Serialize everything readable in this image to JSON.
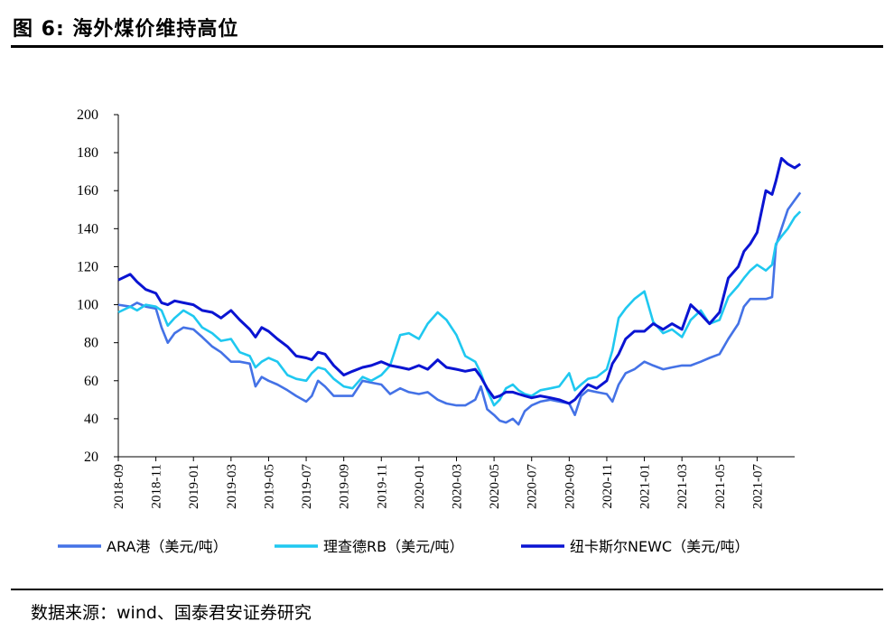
{
  "figure": {
    "title": "图 6: 海外煤价维持高位",
    "source": "数据来源：wind、国泰君安证券研究"
  },
  "chart_data": {
    "type": "line",
    "x_tick_labels": [
      "2018-09",
      "2018-11",
      "2019-01",
      "2019-03",
      "2019-05",
      "2019-07",
      "2019-09",
      "2019-11",
      "2020-01",
      "2020-03",
      "2020-05",
      "2020-07",
      "2020-09",
      "2020-11",
      "2021-01",
      "2021-03",
      "2021-05",
      "2021-07"
    ],
    "x_range": [
      "2018-09",
      "2021-09"
    ],
    "ylim": [
      20,
      200
    ],
    "y_ticks": [
      20,
      40,
      60,
      80,
      100,
      120,
      140,
      160,
      180,
      200
    ],
    "grid": false,
    "legend_position": "bottom",
    "series": [
      {
        "name": "ARA港（美元/吨）",
        "color": "#4472e6",
        "values": [
          [
            "2018-09",
            100
          ],
          [
            "2018-09-20",
            99
          ],
          [
            "2018-10",
            101
          ],
          [
            "2018-10-15",
            99
          ],
          [
            "2018-11",
            98
          ],
          [
            "2018-11-10",
            88
          ],
          [
            "2018-11-20",
            80
          ],
          [
            "2018-12",
            85
          ],
          [
            "2018-12-15",
            88
          ],
          [
            "2019-01",
            87
          ],
          [
            "2019-01-15",
            83
          ],
          [
            "2019-02",
            78
          ],
          [
            "2019-02-15",
            75
          ],
          [
            "2019-03",
            70
          ],
          [
            "2019-03-15",
            70
          ],
          [
            "2019-04",
            69
          ],
          [
            "2019-04-10",
            57
          ],
          [
            "2019-04-20",
            62
          ],
          [
            "2019-05",
            60
          ],
          [
            "2019-05-15",
            58
          ],
          [
            "2019-06",
            55
          ],
          [
            "2019-06-15",
            52
          ],
          [
            "2019-07",
            49
          ],
          [
            "2019-07-10",
            52
          ],
          [
            "2019-07-20",
            60
          ],
          [
            "2019-08",
            57
          ],
          [
            "2019-08-15",
            52
          ],
          [
            "2019-09",
            52
          ],
          [
            "2019-09-15",
            52
          ],
          [
            "2019-10",
            60
          ],
          [
            "2019-10-15",
            59
          ],
          [
            "2019-11",
            58
          ],
          [
            "2019-11-15",
            53
          ],
          [
            "2019-12",
            56
          ],
          [
            "2019-12-15",
            54
          ],
          [
            "2020-01",
            53
          ],
          [
            "2020-01-15",
            54
          ],
          [
            "2020-02",
            50
          ],
          [
            "2020-02-15",
            48
          ],
          [
            "2020-03",
            47
          ],
          [
            "2020-03-15",
            47
          ],
          [
            "2020-04",
            50
          ],
          [
            "2020-04-10",
            57
          ],
          [
            "2020-04-20",
            45
          ],
          [
            "2020-05",
            42
          ],
          [
            "2020-05-10",
            39
          ],
          [
            "2020-05-20",
            38
          ],
          [
            "2020-06",
            40
          ],
          [
            "2020-06-10",
            37
          ],
          [
            "2020-06-20",
            44
          ],
          [
            "2020-07",
            47
          ],
          [
            "2020-07-15",
            49
          ],
          [
            "2020-08",
            50
          ],
          [
            "2020-08-15",
            49
          ],
          [
            "2020-09",
            48
          ],
          [
            "2020-09-10",
            42
          ],
          [
            "2020-09-20",
            52
          ],
          [
            "2020-10",
            55
          ],
          [
            "2020-10-15",
            54
          ],
          [
            "2020-11",
            53
          ],
          [
            "2020-11-10",
            49
          ],
          [
            "2020-11-20",
            58
          ],
          [
            "2020-12",
            64
          ],
          [
            "2020-12-15",
            66
          ],
          [
            "2021-01",
            70
          ],
          [
            "2021-01-15",
            68
          ],
          [
            "2021-02",
            66
          ],
          [
            "2021-02-15",
            67
          ],
          [
            "2021-03",
            68
          ],
          [
            "2021-03-15",
            68
          ],
          [
            "2021-04",
            70
          ],
          [
            "2021-04-15",
            72
          ],
          [
            "2021-05",
            74
          ],
          [
            "2021-05-15",
            82
          ],
          [
            "2021-06",
            90
          ],
          [
            "2021-06-10",
            99
          ],
          [
            "2021-06-20",
            103
          ],
          [
            "2021-07",
            103
          ],
          [
            "2021-07-15",
            103
          ],
          [
            "2021-07-25",
            104
          ],
          [
            "2021-08",
            131
          ],
          [
            "2021-08-10",
            140
          ],
          [
            "2021-08-20",
            150
          ],
          [
            "2021-09",
            155
          ],
          [
            "2021-09-10",
            159
          ]
        ]
      },
      {
        "name": "理查德RB（美元/吨）",
        "color": "#1fc8f0",
        "values": [
          [
            "2018-09",
            96
          ],
          [
            "2018-09-20",
            99
          ],
          [
            "2018-10",
            97
          ],
          [
            "2018-10-15",
            100
          ],
          [
            "2018-11",
            99
          ],
          [
            "2018-11-10",
            97
          ],
          [
            "2018-11-20",
            89
          ],
          [
            "2018-12",
            93
          ],
          [
            "2018-12-15",
            97
          ],
          [
            "2019-01",
            94
          ],
          [
            "2019-01-15",
            88
          ],
          [
            "2019-02",
            85
          ],
          [
            "2019-02-15",
            81
          ],
          [
            "2019-03",
            82
          ],
          [
            "2019-03-15",
            75
          ],
          [
            "2019-04",
            73
          ],
          [
            "2019-04-10",
            67
          ],
          [
            "2019-04-20",
            70
          ],
          [
            "2019-05",
            72
          ],
          [
            "2019-05-15",
            70
          ],
          [
            "2019-06",
            63
          ],
          [
            "2019-06-15",
            61
          ],
          [
            "2019-07",
            60
          ],
          [
            "2019-07-10",
            64
          ],
          [
            "2019-07-20",
            67
          ],
          [
            "2019-08",
            66
          ],
          [
            "2019-08-15",
            61
          ],
          [
            "2019-09",
            57
          ],
          [
            "2019-09-15",
            56
          ],
          [
            "2019-10",
            62
          ],
          [
            "2019-10-15",
            60
          ],
          [
            "2019-11",
            63
          ],
          [
            "2019-11-15",
            68
          ],
          [
            "2019-12",
            84
          ],
          [
            "2019-12-15",
            85
          ],
          [
            "2020-01",
            82
          ],
          [
            "2020-01-15",
            90
          ],
          [
            "2020-02",
            96
          ],
          [
            "2020-02-15",
            92
          ],
          [
            "2020-03",
            84
          ],
          [
            "2020-03-15",
            73
          ],
          [
            "2020-04",
            70
          ],
          [
            "2020-04-10",
            64
          ],
          [
            "2020-04-20",
            55
          ],
          [
            "2020-05",
            47
          ],
          [
            "2020-05-10",
            50
          ],
          [
            "2020-05-20",
            56
          ],
          [
            "2020-06",
            58
          ],
          [
            "2020-06-10",
            55
          ],
          [
            "2020-06-20",
            53
          ],
          [
            "2020-07",
            52
          ],
          [
            "2020-07-15",
            55
          ],
          [
            "2020-08",
            56
          ],
          [
            "2020-08-15",
            57
          ],
          [
            "2020-09",
            64
          ],
          [
            "2020-09-10",
            55
          ],
          [
            "2020-09-20",
            58
          ],
          [
            "2020-10",
            61
          ],
          [
            "2020-10-15",
            62
          ],
          [
            "2020-11",
            66
          ],
          [
            "2020-11-10",
            76
          ],
          [
            "2020-11-20",
            93
          ],
          [
            "2020-12",
            98
          ],
          [
            "2020-12-15",
            103
          ],
          [
            "2021-01",
            107
          ],
          [
            "2021-01-15",
            91
          ],
          [
            "2021-02",
            85
          ],
          [
            "2021-02-15",
            87
          ],
          [
            "2021-03",
            83
          ],
          [
            "2021-03-15",
            92
          ],
          [
            "2021-04",
            97
          ],
          [
            "2021-04-15",
            90
          ],
          [
            "2021-05",
            92
          ],
          [
            "2021-05-15",
            104
          ],
          [
            "2021-06",
            110
          ],
          [
            "2021-06-10",
            114
          ],
          [
            "2021-06-20",
            118
          ],
          [
            "2021-07",
            121
          ],
          [
            "2021-07-15",
            118
          ],
          [
            "2021-07-25",
            121
          ],
          [
            "2021-08",
            132
          ],
          [
            "2021-08-10",
            136
          ],
          [
            "2021-08-20",
            140
          ],
          [
            "2021-09",
            146
          ],
          [
            "2021-09-10",
            149
          ]
        ]
      },
      {
        "name": "纽卡斯尔NEWC（美元/吨）",
        "color": "#0a14d2",
        "values": [
          [
            "2018-09",
            113
          ],
          [
            "2018-09-20",
            116
          ],
          [
            "2018-10",
            112
          ],
          [
            "2018-10-15",
            108
          ],
          [
            "2018-11",
            106
          ],
          [
            "2018-11-10",
            101
          ],
          [
            "2018-11-20",
            100
          ],
          [
            "2018-12",
            102
          ],
          [
            "2018-12-15",
            101
          ],
          [
            "2019-01",
            100
          ],
          [
            "2019-01-15",
            97
          ],
          [
            "2019-02",
            96
          ],
          [
            "2019-02-15",
            93
          ],
          [
            "2019-03",
            97
          ],
          [
            "2019-03-15",
            92
          ],
          [
            "2019-04",
            87
          ],
          [
            "2019-04-10",
            83
          ],
          [
            "2019-04-20",
            88
          ],
          [
            "2019-05",
            86
          ],
          [
            "2019-05-15",
            82
          ],
          [
            "2019-06",
            78
          ],
          [
            "2019-06-15",
            73
          ],
          [
            "2019-07",
            72
          ],
          [
            "2019-07-10",
            71
          ],
          [
            "2019-07-20",
            75
          ],
          [
            "2019-08",
            74
          ],
          [
            "2019-08-15",
            68
          ],
          [
            "2019-09",
            63
          ],
          [
            "2019-09-15",
            65
          ],
          [
            "2019-10",
            67
          ],
          [
            "2019-10-15",
            68
          ],
          [
            "2019-11",
            70
          ],
          [
            "2019-11-15",
            68
          ],
          [
            "2019-12",
            67
          ],
          [
            "2019-12-15",
            66
          ],
          [
            "2020-01",
            68
          ],
          [
            "2020-01-15",
            66
          ],
          [
            "2020-02",
            71
          ],
          [
            "2020-02-15",
            67
          ],
          [
            "2020-03",
            66
          ],
          [
            "2020-03-15",
            65
          ],
          [
            "2020-04",
            66
          ],
          [
            "2020-04-10",
            62
          ],
          [
            "2020-04-20",
            56
          ],
          [
            "2020-05",
            51
          ],
          [
            "2020-05-10",
            52
          ],
          [
            "2020-05-20",
            54
          ],
          [
            "2020-06",
            54
          ],
          [
            "2020-06-10",
            53
          ],
          [
            "2020-06-20",
            52
          ],
          [
            "2020-07",
            51
          ],
          [
            "2020-07-15",
            52
          ],
          [
            "2020-08",
            51
          ],
          [
            "2020-08-15",
            50
          ],
          [
            "2020-09",
            48
          ],
          [
            "2020-09-10",
            50
          ],
          [
            "2020-09-20",
            54
          ],
          [
            "2020-10",
            58
          ],
          [
            "2020-10-15",
            56
          ],
          [
            "2020-11",
            60
          ],
          [
            "2020-11-10",
            69
          ],
          [
            "2020-11-20",
            74
          ],
          [
            "2020-12",
            82
          ],
          [
            "2020-12-15",
            86
          ],
          [
            "2021-01",
            86
          ],
          [
            "2021-01-15",
            90
          ],
          [
            "2021-02",
            87
          ],
          [
            "2021-02-15",
            90
          ],
          [
            "2021-03",
            87
          ],
          [
            "2021-03-15",
            100
          ],
          [
            "2021-04",
            95
          ],
          [
            "2021-04-15",
            90
          ],
          [
            "2021-05",
            96
          ],
          [
            "2021-05-15",
            114
          ],
          [
            "2021-06",
            120
          ],
          [
            "2021-06-10",
            128
          ],
          [
            "2021-06-20",
            132
          ],
          [
            "2021-07",
            138
          ],
          [
            "2021-07-15",
            160
          ],
          [
            "2021-07-25",
            158
          ],
          [
            "2021-08",
            165
          ],
          [
            "2021-08-10",
            177
          ],
          [
            "2021-08-20",
            174
          ],
          [
            "2021-09",
            172
          ],
          [
            "2021-09-10",
            174
          ]
        ]
      }
    ]
  }
}
